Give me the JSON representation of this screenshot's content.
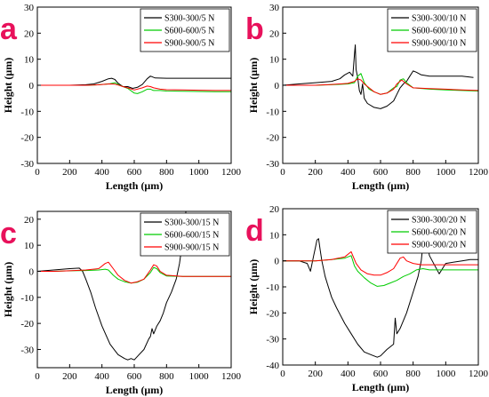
{
  "chart_data": [
    {
      "panel_label": "a",
      "type": "line",
      "xlabel": "Length (μm)",
      "ylabel": "Height (μm)",
      "xlim": [
        0,
        1200
      ],
      "ylim": [
        -30,
        30
      ],
      "xticks": [
        0,
        200,
        400,
        600,
        800,
        1000,
        1200
      ],
      "yticks": [
        -30,
        -20,
        -10,
        0,
        10,
        20,
        30
      ],
      "legend": "top-right",
      "series": [
        {
          "name": "S300-300/5 N",
          "color": "#000000",
          "x": [
            0,
            100,
            200,
            300,
            350,
            400,
            440,
            460,
            480,
            500,
            530,
            560,
            590,
            620,
            650,
            680,
            700,
            730,
            800,
            900,
            1000,
            1100,
            1200
          ],
          "y": [
            0,
            0,
            0,
            0.2,
            0.5,
            1.5,
            2.5,
            2.7,
            2.2,
            0.8,
            -0.5,
            -0.5,
            -1.2,
            -0.8,
            0.3,
            2.5,
            3.5,
            2.8,
            2.7,
            2.7,
            2.7,
            2.7,
            2.7
          ]
        },
        {
          "name": "S600-600/5 N",
          "color": "#00cc00",
          "x": [
            0,
            100,
            200,
            300,
            350,
            400,
            450,
            480,
            500,
            530,
            560,
            600,
            620,
            650,
            680,
            700,
            720,
            760,
            800,
            900,
            1000,
            1100,
            1200
          ],
          "y": [
            0,
            0,
            0,
            0,
            0.1,
            0.3,
            0.6,
            1.0,
            0.3,
            -0.5,
            -1.2,
            -3.0,
            -3.2,
            -2.5,
            -1.5,
            -1.5,
            -2.0,
            -2.0,
            -2.2,
            -2.3,
            -2.4,
            -2.5,
            -2.5
          ]
        },
        {
          "name": "S900-900/5 N",
          "color": "#ff0000",
          "x": [
            0,
            100,
            200,
            300,
            350,
            400,
            450,
            480,
            500,
            530,
            560,
            600,
            650,
            680,
            700,
            720,
            760,
            800,
            900,
            1000,
            1100,
            1200
          ],
          "y": [
            0,
            0,
            0,
            0,
            0.1,
            0.3,
            0.5,
            0.4,
            0.1,
            -0.5,
            -1.0,
            -1.8,
            -1.0,
            -0.3,
            -0.5,
            -1.0,
            -1.5,
            -1.7,
            -1.8,
            -1.9,
            -2.0,
            -2.0
          ]
        }
      ]
    },
    {
      "panel_label": "b",
      "type": "line",
      "xlabel": "Length (μm)",
      "ylabel": "Height (μm)",
      "xlim": [
        0,
        1200
      ],
      "ylim": [
        -30,
        30
      ],
      "xticks": [
        0,
        200,
        400,
        600,
        800,
        1000,
        1200
      ],
      "yticks": [
        -30,
        -20,
        -10,
        0,
        10,
        20,
        30
      ],
      "legend": "top-right",
      "series": [
        {
          "name": "S300-300/10 N",
          "color": "#000000",
          "x": [
            0,
            100,
            200,
            300,
            350,
            380,
            410,
            430,
            440,
            445,
            450,
            460,
            470,
            480,
            490,
            500,
            520,
            560,
            600,
            640,
            680,
            700,
            720,
            740,
            760,
            780,
            800,
            820,
            850,
            900,
            1000,
            1100,
            1170
          ],
          "y": [
            0,
            0.5,
            1.0,
            1.5,
            2.5,
            4.0,
            5.0,
            3.5,
            12.0,
            15.5,
            6.0,
            3.0,
            -2.0,
            -3.5,
            0.5,
            -5.0,
            -7.0,
            -8.5,
            -9.0,
            -8.0,
            -6.0,
            -3.5,
            -1.0,
            0.5,
            1.5,
            3.5,
            5.5,
            5.0,
            4.0,
            3.5,
            3.5,
            3.5,
            3.0
          ]
        },
        {
          "name": "S600-600/10 N",
          "color": "#00cc00",
          "x": [
            0,
            100,
            200,
            300,
            400,
            440,
            460,
            480,
            500,
            530,
            560,
            600,
            640,
            680,
            700,
            720,
            740,
            760,
            800,
            900,
            1000,
            1100,
            1200
          ],
          "y": [
            0,
            0,
            0,
            0.2,
            0.5,
            1.0,
            3.5,
            4.5,
            1.0,
            -1.5,
            -2.5,
            -3.5,
            -3.0,
            -1.0,
            -0.5,
            2.0,
            2.5,
            1.0,
            -1.0,
            -1.5,
            -1.8,
            -2.0,
            -2.2
          ]
        },
        {
          "name": "S900-900/10 N",
          "color": "#ff0000",
          "x": [
            0,
            100,
            200,
            300,
            400,
            440,
            460,
            480,
            500,
            530,
            560,
            600,
            640,
            680,
            700,
            730,
            760,
            800,
            900,
            1000,
            1100,
            1200
          ],
          "y": [
            0,
            0,
            0,
            0.3,
            0.7,
            1.5,
            2.5,
            2.0,
            0.5,
            -1.0,
            -2.5,
            -3.5,
            -3.0,
            -1.5,
            0.5,
            2.0,
            0.5,
            -1.0,
            -1.3,
            -1.5,
            -1.8,
            -2.0
          ]
        }
      ]
    },
    {
      "panel_label": "c",
      "type": "line",
      "xlabel": "Length (μm)",
      "ylabel": "Height (μm)",
      "xlim": [
        0,
        1200
      ],
      "ylim": [
        -37,
        23
      ],
      "xticks": [
        0,
        200,
        400,
        600,
        800,
        1000,
        1200
      ],
      "yticks": [
        -30,
        -20,
        -10,
        0,
        10,
        20
      ],
      "legend": "top-right",
      "series": [
        {
          "name": "S300-300/15 N",
          "color": "#000000",
          "x": [
            0,
            100,
            200,
            260,
            280,
            300,
            330,
            360,
            400,
            450,
            500,
            540,
            560,
            580,
            600,
            630,
            660,
            690,
            700,
            710,
            720,
            740,
            760,
            780,
            800,
            830,
            860,
            880,
            900,
            920
          ],
          "y": [
            0,
            0.5,
            1.0,
            1.2,
            0,
            -3.0,
            -8.0,
            -14.0,
            -21.0,
            -28.0,
            -32.0,
            -33.5,
            -34.0,
            -33.5,
            -34.0,
            -32.0,
            -30.0,
            -26.0,
            -25.0,
            -22.0,
            -24.0,
            -21.0,
            -19.0,
            -16.0,
            -12.0,
            -8.0,
            -3.0,
            3.0,
            12.0,
            23.0
          ]
        },
        {
          "name": "S600-600/15 N",
          "color": "#00cc00",
          "x": [
            0,
            100,
            200,
            300,
            380,
            420,
            440,
            470,
            500,
            540,
            580,
            620,
            660,
            700,
            720,
            740,
            760,
            800,
            900,
            1000,
            1100,
            1200
          ],
          "y": [
            0,
            0,
            0.2,
            0.3,
            0.5,
            0.8,
            0.5,
            -1.5,
            -3.0,
            -4.0,
            -4.5,
            -4.2,
            -3.0,
            -0.5,
            1.5,
            1.0,
            -0.5,
            -1.8,
            -2.0,
            -2.0,
            -2.0,
            -2.0
          ]
        },
        {
          "name": "S900-900/15 N",
          "color": "#ff0000",
          "x": [
            0,
            100,
            200,
            300,
            380,
            420,
            440,
            470,
            500,
            540,
            580,
            620,
            660,
            700,
            720,
            740,
            760,
            800,
            900,
            1000,
            1100,
            1200
          ],
          "y": [
            0,
            0,
            0.2,
            0.5,
            1.0,
            3.0,
            3.5,
            1.0,
            -1.5,
            -3.5,
            -4.5,
            -4.0,
            -3.0,
            0.5,
            2.5,
            2.0,
            0.0,
            -1.5,
            -2.0,
            -2.0,
            -2.0,
            -2.0
          ]
        }
      ]
    },
    {
      "panel_label": "d",
      "type": "line",
      "xlabel": "Length (μm)",
      "ylabel": "Height (μm)",
      "xlim": [
        0,
        1200
      ],
      "ylim": [
        -40,
        20
      ],
      "xticks": [
        0,
        200,
        400,
        600,
        800,
        1000,
        1200
      ],
      "yticks": [
        -40,
        -30,
        -20,
        -10,
        0,
        10,
        20
      ],
      "legend": "top-right",
      "series": [
        {
          "name": "S300-300/20 N",
          "color": "#000000",
          "x": [
            0,
            100,
            150,
            170,
            180,
            190,
            200,
            210,
            220,
            230,
            240,
            260,
            280,
            300,
            330,
            380,
            420,
            460,
            500,
            540,
            580,
            600,
            640,
            680,
            690,
            700,
            720,
            760,
            800,
            830,
            850,
            870,
            900,
            960,
            1000,
            1100,
            1150,
            1200
          ],
          "y": [
            0,
            0,
            -1.0,
            -4.0,
            -1.0,
            2.0,
            5.0,
            8.0,
            8.5,
            4.0,
            0,
            -6.0,
            -10.0,
            -14.0,
            -18.0,
            -24.0,
            -28.0,
            -32.0,
            -35.0,
            -36.0,
            -37.0,
            -36.5,
            -34.0,
            -32.0,
            -22.0,
            -28.0,
            -26.0,
            -20.0,
            -12.0,
            -6.0,
            0,
            12.0,
            2.0,
            -5.0,
            -1.0,
            0.0,
            0.5,
            0.5
          ]
        },
        {
          "name": "S600-600/20 N",
          "color": "#00cc00",
          "x": [
            0,
            100,
            200,
            300,
            380,
            420,
            440,
            460,
            500,
            540,
            580,
            620,
            660,
            700,
            740,
            780,
            820,
            860,
            900,
            1000,
            1100,
            1200
          ],
          "y": [
            0,
            0,
            0,
            0.5,
            1.0,
            2.0,
            -2.0,
            -4.0,
            -6.5,
            -8.5,
            -9.8,
            -9.5,
            -8.5,
            -7.5,
            -6.0,
            -5.0,
            -3.5,
            -3.0,
            -3.5,
            -3.5,
            -3.5,
            -3.5
          ]
        },
        {
          "name": "S900-900/20 N",
          "color": "#ff0000",
          "x": [
            0,
            100,
            200,
            300,
            380,
            420,
            430,
            450,
            480,
            520,
            560,
            600,
            640,
            680,
            720,
            740,
            760,
            800,
            850,
            900,
            1000,
            1100,
            1200
          ],
          "y": [
            0,
            0,
            0,
            0.5,
            1.5,
            3.5,
            2.0,
            -1.0,
            -3.5,
            -5.0,
            -5.5,
            -5.5,
            -4.5,
            -3.0,
            1.0,
            1.5,
            0.0,
            -1.0,
            -1.5,
            -1.5,
            -1.5,
            -1.5,
            -1.5
          ]
        }
      ]
    }
  ]
}
